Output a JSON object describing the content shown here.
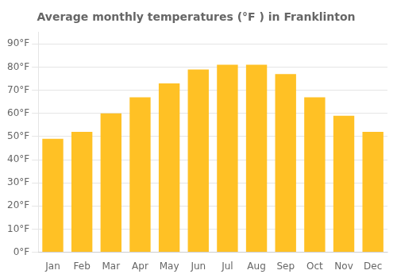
{
  "chart_data": {
    "type": "bar",
    "title": "Average monthly temperatures (°F ) in Franklinton",
    "categories": [
      "Jan",
      "Feb",
      "Mar",
      "Apr",
      "May",
      "Jun",
      "Jul",
      "Aug",
      "Sep",
      "Oct",
      "Nov",
      "Dec"
    ],
    "values": [
      49,
      52,
      60,
      67,
      73,
      79,
      81,
      81,
      77,
      67,
      59,
      52
    ],
    "color": "#FFC125",
    "ylim": [
      0,
      95
    ],
    "yticks": [
      {
        "value": 0,
        "label": "0°F"
      },
      {
        "value": 10,
        "label": "10°F"
      },
      {
        "value": 20,
        "label": "20°F"
      },
      {
        "value": 30,
        "label": "30°F"
      },
      {
        "value": 40,
        "label": "40°F"
      },
      {
        "value": 50,
        "label": "50°F"
      },
      {
        "value": 60,
        "label": "60°F"
      },
      {
        "value": 70,
        "label": "70°F"
      },
      {
        "value": 80,
        "label": "80°F"
      },
      {
        "value": 90,
        "label": "90°F"
      }
    ],
    "grid": true
  }
}
